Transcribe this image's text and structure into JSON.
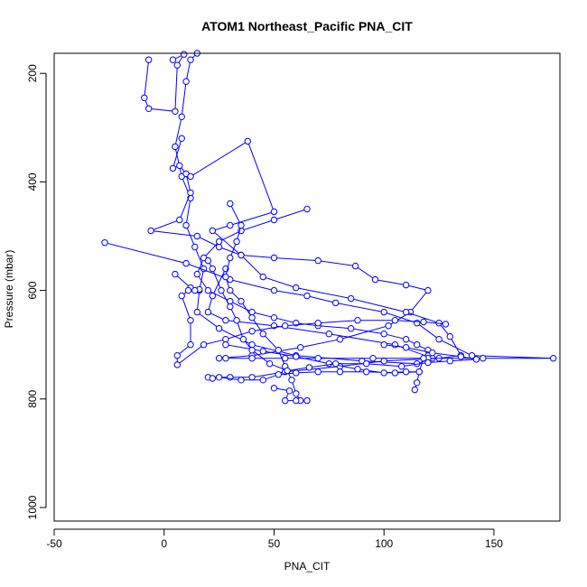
{
  "chart_data": {
    "type": "line",
    "title": "ATOM1 Northeast_Pacific PNA_CIT",
    "xlabel": "PNA_CIT",
    "ylabel": "Pressure (mbar)",
    "xlim": [
      -50,
      180
    ],
    "ylim": [
      1025,
      163
    ],
    "y_reversed": true,
    "x_ticks": [
      -50,
      0,
      50,
      100,
      150
    ],
    "y_ticks": [
      200,
      400,
      600,
      800,
      1000
    ],
    "grid": false,
    "marker": "open-circle",
    "series_color": "#0000ff",
    "series": [
      {
        "points": [
          [
            15,
            163
          ],
          [
            12,
            175
          ],
          [
            10,
            215
          ],
          [
            8,
            280
          ],
          [
            5,
            335
          ],
          [
            8,
            390
          ],
          [
            12,
            430
          ],
          [
            10,
            480
          ],
          [
            14,
            520
          ],
          [
            18,
            560
          ],
          [
            16,
            600
          ],
          [
            15,
            640
          ],
          [
            25,
            670
          ],
          [
            40,
            700
          ],
          [
            60,
            720
          ],
          [
            90,
            730
          ],
          [
            115,
            735
          ],
          [
            122,
            725
          ],
          [
            105,
            700
          ],
          [
            75,
            680
          ],
          [
            50,
            665
          ],
          [
            28,
            655
          ],
          [
            20,
            640
          ],
          [
            22,
            610
          ],
          [
            28,
            560
          ]
        ]
      },
      {
        "points": [
          [
            -7,
            175
          ],
          [
            -9,
            245
          ],
          [
            -7,
            265
          ],
          [
            5,
            270
          ],
          [
            6,
            185
          ],
          [
            9,
            165
          ],
          [
            4,
            175
          ]
        ]
      },
      {
        "points": [
          [
            8,
            320
          ],
          [
            4,
            375
          ],
          [
            7,
            370
          ],
          [
            10,
            385
          ],
          [
            12,
            420
          ],
          [
            7,
            470
          ],
          [
            -6,
            490
          ],
          [
            15,
            500
          ],
          [
            25,
            520
          ],
          [
            35,
            535
          ],
          [
            50,
            540
          ],
          [
            70,
            545
          ],
          [
            87,
            555
          ],
          [
            96,
            580
          ],
          [
            110,
            590
          ],
          [
            120,
            600
          ],
          [
            112,
            640
          ],
          [
            102,
            665
          ],
          [
            80,
            690
          ],
          [
            62,
            705
          ],
          [
            40,
            720
          ],
          [
            25,
            725
          ]
        ]
      },
      {
        "points": [
          [
            12,
            390
          ],
          [
            38,
            325
          ],
          [
            50,
            455
          ],
          [
            30,
            480
          ],
          [
            22,
            490
          ],
          [
            35,
            535
          ],
          [
            45,
            575
          ],
          [
            60,
            595
          ],
          [
            85,
            615
          ],
          [
            110,
            640
          ],
          [
            125,
            660
          ],
          [
            130,
            685
          ],
          [
            135,
            720
          ],
          [
            125,
            725
          ],
          [
            100,
            730
          ],
          [
            80,
            740
          ],
          [
            55,
            750
          ],
          [
            40,
            760
          ],
          [
            30,
            760
          ],
          [
            20,
            760
          ]
        ]
      },
      {
        "points": [
          [
            -27,
            512
          ],
          [
            10,
            550
          ],
          [
            30,
            580
          ],
          [
            50,
            600
          ],
          [
            65,
            610
          ],
          [
            78,
            623
          ],
          [
            100,
            640
          ],
          [
            115,
            660
          ],
          [
            125,
            690
          ],
          [
            140,
            720
          ],
          [
            177,
            725
          ],
          [
            145,
            725
          ],
          [
            120,
            725
          ],
          [
            95,
            725
          ],
          [
            70,
            725
          ],
          [
            55,
            725
          ],
          [
            40,
            725
          ],
          [
            28,
            725
          ]
        ]
      },
      {
        "points": [
          [
            65,
            450
          ],
          [
            50,
            470
          ],
          [
            35,
            490
          ],
          [
            25,
            510
          ],
          [
            18,
            540
          ],
          [
            15,
            570
          ],
          [
            20,
            600
          ],
          [
            30,
            620
          ],
          [
            40,
            640
          ],
          [
            50,
            650
          ],
          [
            60,
            660
          ],
          [
            70,
            665
          ],
          [
            85,
            670
          ],
          [
            100,
            680
          ],
          [
            110,
            690
          ],
          [
            115,
            700
          ],
          [
            120,
            710
          ],
          [
            118,
            725
          ],
          [
            116,
            750
          ],
          [
            115,
            770
          ],
          [
            114,
            783
          ]
        ]
      },
      {
        "points": [
          [
            5,
            570
          ],
          [
            12,
            595
          ],
          [
            16,
            598
          ],
          [
            14,
            600
          ],
          [
            11,
            600
          ],
          [
            8,
            610
          ],
          [
            12,
            655
          ],
          [
            12,
            700
          ],
          [
            6,
            720
          ],
          [
            6,
            737
          ],
          [
            18,
            700
          ],
          [
            28,
            690
          ],
          [
            40,
            675
          ],
          [
            55,
            665
          ],
          [
            70,
            660
          ],
          [
            88,
            655
          ],
          [
            105,
            655
          ],
          [
            118,
            658
          ],
          [
            128,
            662
          ]
        ]
      },
      {
        "points": [
          [
            30,
            440
          ],
          [
            35,
            480
          ],
          [
            33,
            510
          ],
          [
            30,
            540
          ],
          [
            28,
            575
          ],
          [
            30,
            600
          ],
          [
            35,
            620
          ],
          [
            40,
            650
          ],
          [
            45,
            680
          ],
          [
            52,
            710
          ],
          [
            55,
            740
          ],
          [
            58,
            765
          ],
          [
            60,
            790
          ],
          [
            62,
            803
          ],
          [
            65,
            803
          ],
          [
            60,
            803
          ],
          [
            55,
            803
          ],
          [
            57,
            785
          ],
          [
            50,
            780
          ]
        ]
      },
      {
        "points": [
          [
            28,
            700
          ],
          [
            45,
            712
          ],
          [
            60,
            722
          ],
          [
            75,
            735
          ],
          [
            88,
            745
          ],
          [
            100,
            752
          ],
          [
            110,
            750
          ],
          [
            116,
            750
          ],
          [
            105,
            752
          ],
          [
            92,
            750
          ],
          [
            80,
            750
          ],
          [
            70,
            750
          ],
          [
            60,
            752
          ],
          [
            52,
            755
          ],
          [
            45,
            765
          ],
          [
            35,
            765
          ],
          [
            25,
            760
          ],
          [
            22,
            762
          ]
        ]
      },
      {
        "points": [
          [
            20,
            545
          ],
          [
            22,
            560
          ],
          [
            26,
            600
          ],
          [
            30,
            630
          ],
          [
            33,
            655
          ],
          [
            36,
            690
          ],
          [
            40,
            710
          ],
          [
            48,
            735
          ],
          [
            56,
            748
          ],
          [
            66,
            742
          ],
          [
            78,
            735
          ],
          [
            92,
            735
          ],
          [
            108,
            740
          ],
          [
            120,
            733
          ],
          [
            130,
            730
          ],
          [
            142,
            727
          ],
          [
            135,
            722
          ],
          [
            122,
            715
          ],
          [
            110,
            705
          ],
          [
            100,
            700
          ]
        ]
      }
    ]
  }
}
